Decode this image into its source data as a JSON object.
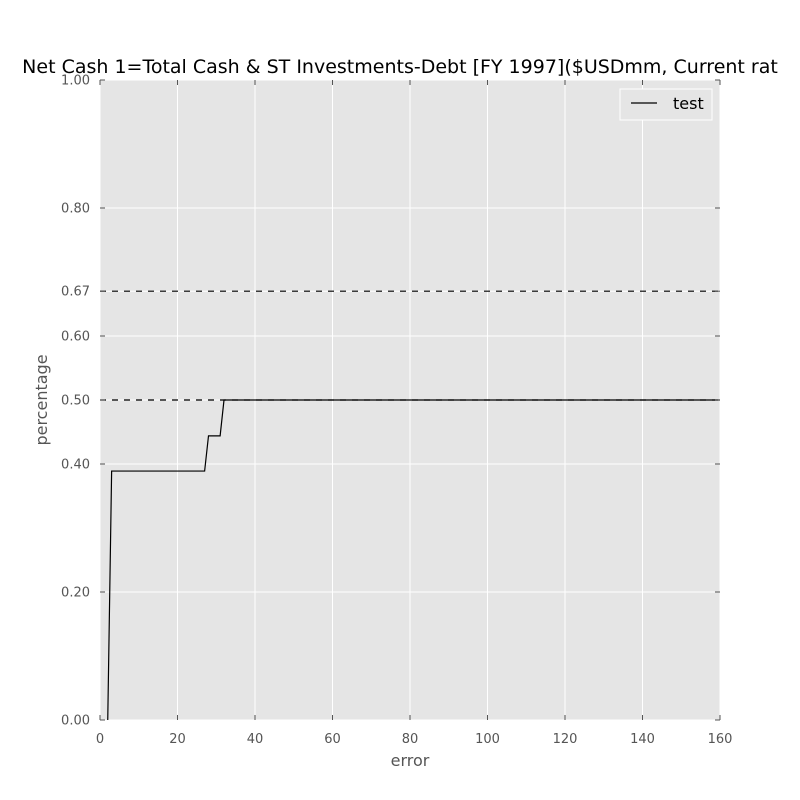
{
  "chart_data": {
    "type": "line",
    "title": "Net Cash 1=Total Cash & ST Investments-Debt [FY 1997]($USDmm, Current rat",
    "xlabel": "error",
    "ylabel": "percentage",
    "xlim": [
      0,
      160
    ],
    "ylim": [
      0,
      1
    ],
    "x_ticks": [
      0,
      20,
      40,
      60,
      80,
      100,
      120,
      140,
      160
    ],
    "x_tick_labels": [
      "0",
      "20",
      "40",
      "60",
      "80",
      "100",
      "120",
      "140",
      "160"
    ],
    "y_ticks": [
      0,
      0.2,
      0.4,
      0.5,
      0.6,
      0.67,
      0.8,
      1.0
    ],
    "y_tick_labels": [
      "0.00",
      "0.20",
      "0.40",
      "0.50",
      "0.60",
      "0.67",
      "0.80",
      "1.00"
    ],
    "grid": true,
    "legend_position": "top-right",
    "reference_lines": [
      {
        "y": 0.67,
        "style": "dashed",
        "color": "#000000"
      },
      {
        "y": 0.5,
        "style": "dashed",
        "color": "#000000"
      }
    ],
    "series": [
      {
        "name": "test",
        "color": "#000000",
        "x": [
          2,
          3,
          27,
          28,
          31,
          32,
          160
        ],
        "y": [
          0.0,
          0.389,
          0.389,
          0.444,
          0.444,
          0.5,
          0.5
        ]
      }
    ],
    "colors": {
      "plot_background": "#e5e5e5",
      "grid": "#ffffff",
      "axis_text": "#555555"
    }
  }
}
